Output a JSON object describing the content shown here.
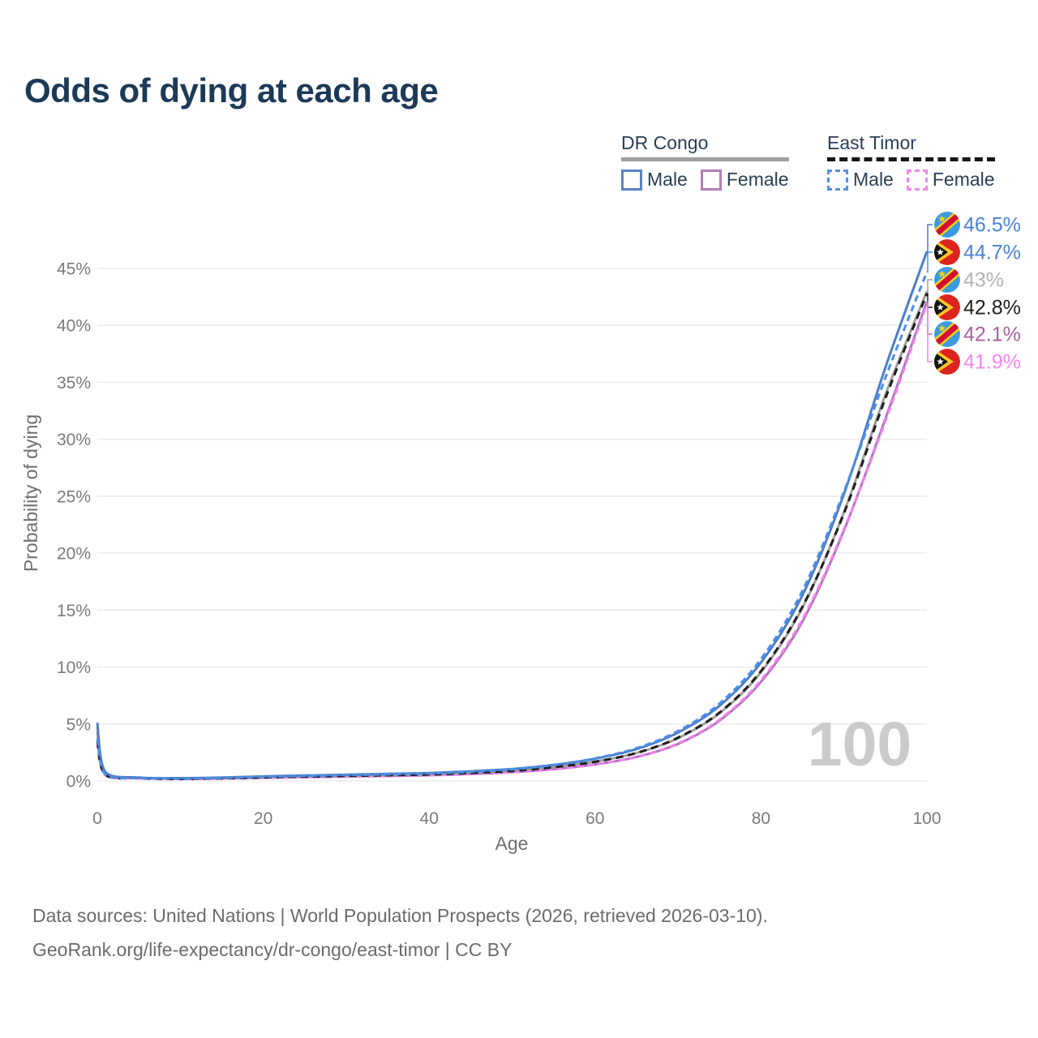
{
  "title": "Odds of dying at each age",
  "legend": {
    "groups": [
      {
        "name": "DR Congo",
        "dashed": false,
        "underline_color": "#9e9e9e",
        "items": [
          {
            "label": "Male",
            "color": "#5585c8"
          },
          {
            "label": "Female",
            "color": "#b77cb9"
          }
        ]
      },
      {
        "name": "East Timor",
        "dashed": true,
        "underline_color": "#161616",
        "items": [
          {
            "label": "Male",
            "color": "#4f93e8"
          },
          {
            "label": "Female",
            "color": "#f583ef"
          }
        ]
      }
    ]
  },
  "chart_data": {
    "type": "line",
    "title": "Odds of dying at each age",
    "xlabel": "Age",
    "ylabel": "Probability of dying",
    "x_ticks": [
      0,
      20,
      40,
      60,
      80,
      100
    ],
    "y_ticks_pct": [
      0,
      5,
      10,
      15,
      20,
      25,
      30,
      35,
      40,
      45
    ],
    "xlim": [
      0,
      100
    ],
    "ylim": [
      0,
      48.5
    ],
    "grid": "horizontal-only",
    "legend_position": "top-right",
    "watermark": "100",
    "x": [
      0,
      1,
      5,
      10,
      15,
      20,
      25,
      30,
      35,
      40,
      45,
      50,
      55,
      60,
      65,
      70,
      75,
      80,
      85,
      90,
      95,
      100
    ],
    "series": [
      {
        "name": "DR Congo — Male",
        "country": "DR Congo",
        "sex": "Male",
        "flag": "dr-congo",
        "color": "#4e7dc7",
        "dashed": false,
        "label_color": "#4a82d4",
        "end_label": "46.5%",
        "values": [
          5.1,
          0.75,
          0.3,
          0.25,
          0.3,
          0.4,
          0.48,
          0.55,
          0.62,
          0.7,
          0.85,
          1.05,
          1.4,
          1.95,
          2.8,
          4.25,
          6.6,
          10.4,
          16.3,
          25.2,
          36.3,
          46.5
        ]
      },
      {
        "name": "East Timor — Male",
        "country": "East Timor",
        "sex": "Male",
        "flag": "east-timor",
        "color": "#4a8fe8",
        "dashed": true,
        "label_color": "#4a82d4",
        "end_label": "44.7%",
        "values": [
          3.7,
          0.55,
          0.25,
          0.2,
          0.26,
          0.36,
          0.44,
          0.51,
          0.58,
          0.66,
          0.81,
          1.02,
          1.4,
          1.98,
          2.88,
          4.38,
          6.8,
          10.7,
          16.7,
          25.4,
          35.4,
          44.7
        ]
      },
      {
        "name": "DR Congo — Both sexes",
        "country": "DR Congo",
        "sex": "Both",
        "flag": "dr-congo",
        "color": "#9e9e9e",
        "dashed": false,
        "label_color": "#b3b3b3",
        "end_label": "43%",
        "values": [
          4.7,
          0.7,
          0.28,
          0.22,
          0.26,
          0.34,
          0.41,
          0.47,
          0.53,
          0.6,
          0.73,
          0.91,
          1.22,
          1.7,
          2.45,
          3.75,
          5.95,
          9.55,
          15.2,
          23.6,
          33.9,
          43.0
        ]
      },
      {
        "name": "East Timor — Both sexes",
        "country": "East Timor",
        "sex": "Both",
        "flag": "east-timor",
        "color": "#1f1f1f",
        "dashed": true,
        "label_color": "#1f1f1f",
        "end_label": "42.8%",
        "values": [
          3.5,
          0.52,
          0.24,
          0.18,
          0.23,
          0.31,
          0.38,
          0.44,
          0.5,
          0.57,
          0.7,
          0.88,
          1.2,
          1.68,
          2.46,
          3.8,
          6.0,
          9.65,
          15.3,
          23.5,
          33.6,
          42.8
        ]
      },
      {
        "name": "DR Congo — Female",
        "country": "DR Congo",
        "sex": "Female",
        "flag": "dr-congo",
        "color": "#ad75bd",
        "dashed": false,
        "label_color": "#a5619f",
        "end_label": "42.1%",
        "values": [
          4.3,
          0.65,
          0.26,
          0.19,
          0.22,
          0.28,
          0.34,
          0.39,
          0.44,
          0.5,
          0.61,
          0.77,
          1.03,
          1.45,
          2.1,
          3.25,
          5.3,
          8.7,
          14.0,
          22.0,
          31.8,
          42.1
        ]
      },
      {
        "name": "East Timor — Female",
        "country": "East Timor",
        "sex": "Female",
        "flag": "east-timor",
        "color": "#f47ff0",
        "dashed": true,
        "label_color": "#f883f2",
        "end_label": "41.9%",
        "values": [
          3.3,
          0.48,
          0.22,
          0.16,
          0.2,
          0.26,
          0.32,
          0.37,
          0.43,
          0.49,
          0.6,
          0.76,
          1.02,
          1.45,
          2.12,
          3.3,
          5.38,
          8.85,
          14.2,
          22.1,
          31.6,
          41.9
        ]
      }
    ]
  },
  "footer": {
    "line1": "Data sources: United Nations | World Population Prospects (2026, retrieved 2026-03-10).",
    "line2": "GeoRank.org/life-expectancy/dr-congo/east-timor | CC BY"
  }
}
